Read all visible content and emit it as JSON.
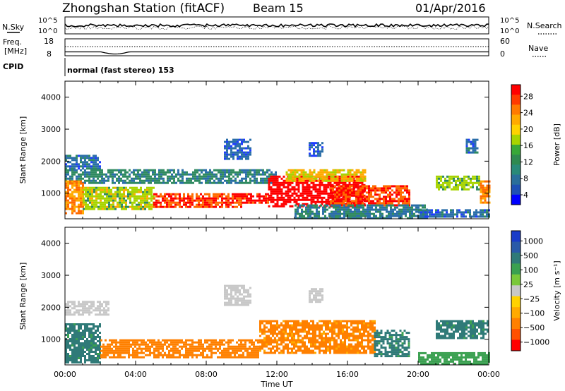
{
  "header": {
    "station": "Zhongshan Station (fitACF)",
    "beam": "Beam 15",
    "date": "01/Apr/2016"
  },
  "summary": {
    "nsky_label": "N.Sky",
    "nsearch_label": "N.Search",
    "noise_ticks": [
      "10^5",
      "10^0"
    ],
    "freq_label_1": "Freq.",
    "freq_label_2": "[MHz]",
    "freq_ticks": [
      "18",
      "8"
    ],
    "nave_label": "Nave",
    "nave_ticks": [
      "60",
      "0"
    ],
    "cpid_label": "CPID",
    "cpid_text": "normal (fast stereo) 153"
  },
  "chart_data": [
    {
      "type": "heatmap",
      "name": "power",
      "ylabel": "Slant Range [km]",
      "yticks": [
        "1000",
        "2000",
        "3000",
        "4000"
      ],
      "ylim": [
        200,
        4500
      ],
      "xlim": [
        0,
        24
      ],
      "colorbar_label": "Power [dB]",
      "colorbar_ticks": [
        "28",
        "24",
        "20",
        "16",
        "12",
        "8",
        "4"
      ],
      "colorbar_colors": [
        "#ff0000",
        "#ff3a00",
        "#ff7a00",
        "#ffaa00",
        "#ffd200",
        "#a8d400",
        "#38a838",
        "#2f8a50",
        "#2a8a78",
        "#2a6e9a",
        "#1e4fb4",
        "#0000ff"
      ],
      "regions": [
        {
          "t0": 0.0,
          "t1": 2.0,
          "r0": 1750,
          "r1": 2200,
          "v": 6
        },
        {
          "t0": 0.0,
          "t1": 12.0,
          "r0": 1300,
          "r1": 1750,
          "v": 9
        },
        {
          "t0": 0.0,
          "t1": 1.0,
          "r0": 400,
          "r1": 1400,
          "v": 20
        },
        {
          "t0": 1.0,
          "t1": 5.0,
          "r0": 500,
          "r1": 1200,
          "v": 14
        },
        {
          "t0": 5.0,
          "t1": 10.0,
          "r0": 550,
          "r1": 1000,
          "v": 24
        },
        {
          "t0": 10.0,
          "t1": 11.5,
          "r0": 700,
          "r1": 1000,
          "v": 26
        },
        {
          "t0": 9.0,
          "t1": 10.5,
          "r0": 2100,
          "r1": 2700,
          "v": 5
        },
        {
          "t0": 13.8,
          "t1": 14.6,
          "r0": 2150,
          "r1": 2600,
          "v": 5
        },
        {
          "t0": 11.5,
          "t1": 17.0,
          "r0": 600,
          "r1": 1550,
          "v": 27
        },
        {
          "t0": 12.5,
          "t1": 17.0,
          "r0": 1400,
          "r1": 1750,
          "v": 17
        },
        {
          "t0": 15.0,
          "t1": 19.5,
          "r0": 650,
          "r1": 1250,
          "v": 24
        },
        {
          "t0": 13.0,
          "t1": 20.5,
          "r0": 250,
          "r1": 650,
          "v": 8
        },
        {
          "t0": 20.0,
          "t1": 24.0,
          "r0": 250,
          "r1": 500,
          "v": 6
        },
        {
          "t0": 21.0,
          "t1": 23.5,
          "r0": 1150,
          "r1": 1550,
          "v": 13
        },
        {
          "t0": 23.5,
          "t1": 24.0,
          "r0": 700,
          "r1": 1400,
          "v": 21
        },
        {
          "t0": 22.7,
          "t1": 23.4,
          "r0": 2300,
          "r1": 2700,
          "v": 6
        }
      ]
    },
    {
      "type": "heatmap",
      "name": "velocity",
      "ylabel": "Slant Range [km]",
      "yticks": [
        "1000",
        "2000",
        "3000",
        "4000"
      ],
      "ylim": [
        200,
        4500
      ],
      "xlim": [
        0,
        24
      ],
      "xticks": [
        "00:00",
        "04:00",
        "08:00",
        "12:00",
        "16:00",
        "20:00",
        "00:00"
      ],
      "xlabel": "Time UT",
      "colorbar_label": "Velocity [m s⁻¹]",
      "colorbar_ticks": [
        "1000",
        "500",
        "100",
        "25",
        "−25",
        "−100",
        "−500",
        "−1000"
      ],
      "colorbar_colors": [
        "#1a3cc8",
        "#2a5aa8",
        "#2f7a78",
        "#3aa050",
        "#7ac83a",
        "#c8c8c8",
        "#ffd200",
        "#ffaa00",
        "#ff8000",
        "#ff5000",
        "#ff0000"
      ],
      "regions": [
        {
          "t0": 0.0,
          "t1": 2.5,
          "r0": 1750,
          "r1": 2200,
          "v": 0
        },
        {
          "t0": 0.0,
          "t1": 2.0,
          "r0": 300,
          "r1": 1500,
          "v": 150
        },
        {
          "t0": 2.0,
          "t1": 11.0,
          "r0": 450,
          "r1": 1000,
          "v": -200
        },
        {
          "t0": 9.0,
          "t1": 10.5,
          "r0": 2100,
          "r1": 2700,
          "v": 0
        },
        {
          "t0": 13.8,
          "t1": 14.6,
          "r0": 2150,
          "r1": 2600,
          "v": 0
        },
        {
          "t0": 11.0,
          "t1": 17.5,
          "r0": 600,
          "r1": 1600,
          "v": -150
        },
        {
          "t0": 17.5,
          "t1": 19.5,
          "r0": 500,
          "r1": 1300,
          "v": 150
        },
        {
          "t0": 20.0,
          "t1": 24.0,
          "r0": 250,
          "r1": 600,
          "v": 60
        },
        {
          "t0": 21.0,
          "t1": 24.0,
          "r0": 1050,
          "r1": 1600,
          "v": 150
        }
      ]
    }
  ]
}
